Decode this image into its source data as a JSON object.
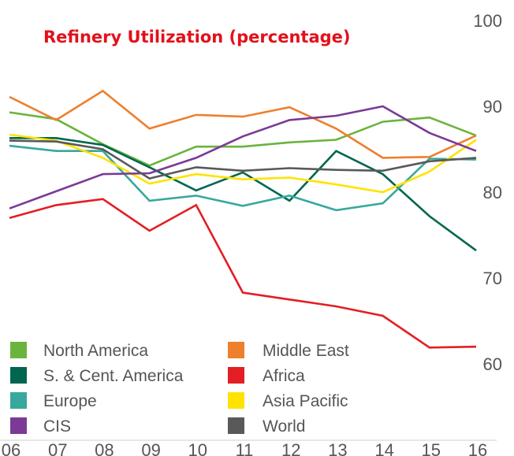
{
  "chart_data": {
    "type": "line",
    "title": "Refinery Utilization (percentage)",
    "title_color": "#e3101a",
    "xlabel": "",
    "ylabel": "",
    "x": [
      "06",
      "07",
      "08",
      "09",
      "10",
      "11",
      "12",
      "13",
      "14",
      "15",
      "16"
    ],
    "ylim": [
      60,
      100
    ],
    "yticks": [
      60,
      70,
      80,
      90,
      100
    ],
    "y_axis_side": "right",
    "grid": false,
    "legend_placement": "bottom-left, two columns",
    "series": [
      {
        "name": "North America",
        "color": "#6ab43e",
        "values": [
          89.3,
          88.5,
          85.6,
          83.1,
          85.3,
          85.3,
          85.8,
          86.1,
          88.2,
          88.7,
          86.6
        ]
      },
      {
        "name": "Middle East",
        "color": "#ee7f2d",
        "values": [
          91.1,
          88.4,
          91.8,
          87.4,
          89.0,
          88.8,
          89.9,
          87.4,
          84.0,
          84.1,
          86.6
        ]
      },
      {
        "name": "S. & Cent. America",
        "color": "#006650",
        "values": [
          86.3,
          86.3,
          85.5,
          82.9,
          80.2,
          82.3,
          79.0,
          84.8,
          82.1,
          77.2,
          73.2
        ]
      },
      {
        "name": "Africa",
        "color": "#e31e24",
        "values": [
          77.0,
          78.5,
          79.2,
          75.5,
          78.5,
          68.3,
          67.5,
          66.7,
          65.6,
          61.9,
          62.0
        ]
      },
      {
        "name": "Europe",
        "color": "#38a89d",
        "values": [
          85.4,
          84.8,
          84.8,
          79.0,
          79.6,
          78.4,
          79.6,
          77.9,
          78.7,
          83.9,
          83.8
        ]
      },
      {
        "name": "Asia Pacific",
        "color": "#ffe300",
        "values": [
          86.7,
          86.0,
          84.0,
          81.0,
          82.1,
          81.5,
          81.7,
          80.9,
          80.0,
          82.4,
          86.1
        ]
      },
      {
        "name": "CIS",
        "color": "#7b3a96",
        "values": [
          78.1,
          80.1,
          82.1,
          82.2,
          84.0,
          86.5,
          88.4,
          88.9,
          90.0,
          86.9,
          84.8
        ]
      },
      {
        "name": "World",
        "color": "#595959",
        "values": [
          86.0,
          85.9,
          85.0,
          81.6,
          82.9,
          82.5,
          82.8,
          82.6,
          82.5,
          83.6,
          84.0
        ]
      }
    ]
  }
}
